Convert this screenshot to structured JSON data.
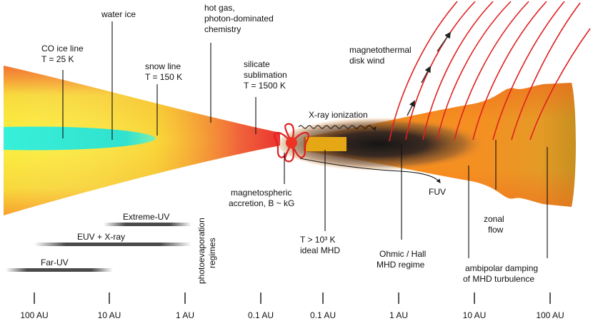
{
  "disk_labels": {
    "co_ice_line": [
      "CO ice line",
      "T = 25 K"
    ],
    "water_ice": [
      "water ice"
    ],
    "snow_line": [
      "snow line",
      "T = 150 K"
    ],
    "hot_gas": [
      "hot gas,",
      "photon-dominated",
      "chemistry"
    ],
    "silicate": [
      "silicate",
      "sublimation",
      "T = 1500 K"
    ],
    "magnetospheric": [
      "magnetospheric",
      "accretion, B ~ kG"
    ],
    "xray": [
      "X-ray ionization"
    ],
    "fuv": [
      "FUV"
    ],
    "wind": [
      "magnetothermal",
      "disk wind"
    ],
    "ideal_mhd": [
      "T > 10³ K",
      "ideal MHD"
    ],
    "ohmic": [
      "Ohmic / Hall",
      "MHD regime"
    ],
    "zonal": [
      "zonal",
      "flow"
    ],
    "ambipolar": [
      "ambipolar damping",
      "of MHD turbulence"
    ]
  },
  "photoevaporation": {
    "title": [
      "photoevaporation",
      "regimes"
    ],
    "bars": [
      {
        "label": "Extreme-UV"
      },
      {
        "label": "EUV + X-ray"
      },
      {
        "label": "Far-UV"
      }
    ]
  },
  "axis_ticks": [
    "100 AU",
    "10 AU",
    "1 AU",
    "0.1 AU",
    "0.1 AU",
    "1 AU",
    "10 AU",
    "100 AU"
  ],
  "colors": {
    "disk_yellow": "#f8ee3a",
    "disk_orange": "#f7a12a",
    "disk_red": "#ef4a3a",
    "ice": "#35ecd6",
    "field_line": "#e02020",
    "star": "#ee3322",
    "hot_zone": "#e6a714",
    "bar_dark": "#4a4a4a"
  }
}
